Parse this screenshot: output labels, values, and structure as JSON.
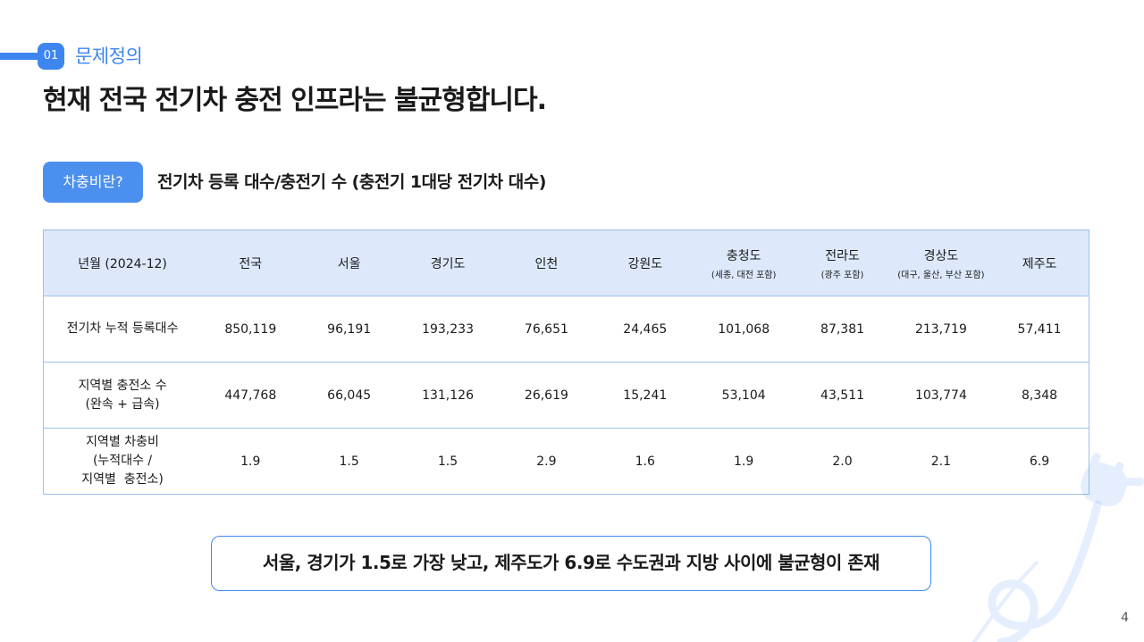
{
  "section": {
    "number": "01",
    "title": "문제정의"
  },
  "headline": "현재 전국 전기차 충전 인프라는 불균형합니다.",
  "pill_label": "차충비란?",
  "subtitle": "전기차 등록 대수/충전기 수 (충전기 1대당 전기차 대수)",
  "table": {
    "headers": [
      {
        "label": "년월 (2024-12)",
        "sub": ""
      },
      {
        "label": "전국",
        "sub": ""
      },
      {
        "label": "서울",
        "sub": ""
      },
      {
        "label": "경기도",
        "sub": ""
      },
      {
        "label": "인천",
        "sub": ""
      },
      {
        "label": "강원도",
        "sub": ""
      },
      {
        "label": "충청도",
        "sub": "(세종, 대전 포함)"
      },
      {
        "label": "전라도",
        "sub": "(광주 포함)"
      },
      {
        "label": "경상도",
        "sub": "(대구, 울산, 부산 포함)"
      },
      {
        "label": "제주도",
        "sub": ""
      }
    ],
    "rows": [
      {
        "label_lines": [
          "전기차 누적 등록대수"
        ],
        "values": [
          "850,119",
          "96,191",
          "193,233",
          "76,651",
          "24,465",
          "101,068",
          "87,381",
          "213,719",
          "57,411"
        ]
      },
      {
        "label_lines": [
          "지역별 충전소 수",
          "(완속 + 급속)"
        ],
        "values": [
          "447,768",
          "66,045",
          "131,126",
          "26,619",
          "15,241",
          "53,104",
          "43,511",
          "103,774",
          "8,348"
        ]
      },
      {
        "label_lines": [
          "지역별 차충비",
          "(누적대수 /",
          "지역별  충전소)"
        ],
        "values": [
          "1.9",
          "1.5",
          "1.5",
          "2.9",
          "1.6",
          "1.9",
          "2.0",
          "2.1",
          "6.9"
        ]
      }
    ]
  },
  "callout": "서울, 경기가 1.5로 가장 낮고, 제주도가 6.9로 수도권과 지방 사이에 불균형이 존재",
  "page_number": "4",
  "decor": {
    "plug_icon": "ev-plug-icon",
    "plug_color": "#3d86f0"
  },
  "colors": {
    "accent": "#3d86f0",
    "pill": "#4c90ef",
    "table_header_bg": "#dde9fb",
    "table_border": "#9fc0ee"
  }
}
